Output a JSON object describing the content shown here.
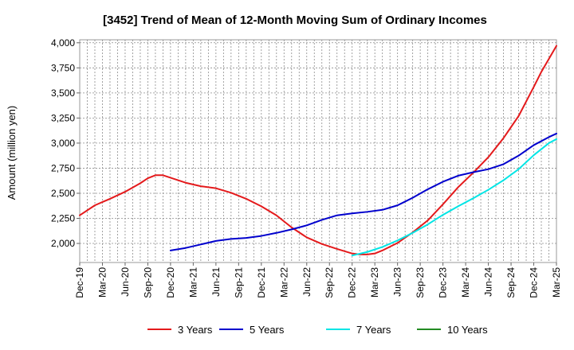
{
  "chart_data": {
    "type": "line",
    "title": "[3452]  Trend of Mean of 12-Month Moving Sum of Ordinary Incomes",
    "xlabel": "",
    "ylabel": "Amount (million yen)",
    "ylim": [
      1810,
      4030
    ],
    "y_ticks": [
      2000,
      2250,
      2500,
      2750,
      3000,
      3250,
      3500,
      3750,
      4000
    ],
    "y_tick_labels": [
      "2,000",
      "2,250",
      "2,500",
      "2,750",
      "3,000",
      "3,250",
      "3,500",
      "3,750",
      "4,000"
    ],
    "x_tick_labels": [
      "Dec-19",
      "Mar-20",
      "Jun-20",
      "Sep-20",
      "Dec-20",
      "Mar-21",
      "Jun-21",
      "Sep-21",
      "Dec-21",
      "Mar-22",
      "Jun-22",
      "Sep-22",
      "Dec-22",
      "Mar-23",
      "Jun-23",
      "Sep-23",
      "Dec-23",
      "Mar-24",
      "Jun-24",
      "Sep-24",
      "Dec-24",
      "Mar-25"
    ],
    "x_unit": "months since Dec-19",
    "x_max": 63,
    "grid": true,
    "legend_position": "bottom",
    "series": [
      {
        "name": "3 Years",
        "color": "#e41a1c",
        "x": [
          0,
          2,
          4,
          6,
          8,
          9,
          10,
          11,
          12,
          14,
          16,
          18,
          20,
          22,
          24,
          26,
          28,
          30,
          32,
          34,
          36,
          37,
          38,
          39,
          40,
          42,
          44,
          46,
          48,
          50,
          52,
          54,
          56,
          58,
          60,
          61,
          62,
          63
        ],
        "values": [
          2280,
          2380,
          2445,
          2515,
          2600,
          2650,
          2680,
          2680,
          2655,
          2605,
          2570,
          2550,
          2505,
          2445,
          2370,
          2280,
          2160,
          2060,
          1995,
          1945,
          1900,
          1890,
          1890,
          1900,
          1930,
          2005,
          2110,
          2230,
          2390,
          2560,
          2705,
          2860,
          3050,
          3270,
          3560,
          3710,
          3840,
          3970
        ]
      },
      {
        "name": "5 Years",
        "color": "#0000cd",
        "x": [
          12,
          14,
          16,
          18,
          20,
          22,
          24,
          26,
          28,
          30,
          32,
          34,
          36,
          38,
          40,
          42,
          44,
          46,
          48,
          50,
          52,
          54,
          56,
          58,
          60,
          62,
          63
        ],
        "values": [
          1930,
          1955,
          1990,
          2025,
          2045,
          2055,
          2075,
          2105,
          2140,
          2180,
          2235,
          2280,
          2300,
          2315,
          2335,
          2380,
          2455,
          2540,
          2615,
          2675,
          2710,
          2740,
          2790,
          2875,
          2980,
          3060,
          3095
        ]
      },
      {
        "name": "7 Years",
        "color": "#00e5e5",
        "x": [
          36,
          38,
          40,
          42,
          44,
          46,
          48,
          50,
          52,
          54,
          56,
          58,
          60,
          62,
          63
        ],
        "values": [
          1880,
          1915,
          1965,
          2030,
          2105,
          2190,
          2285,
          2370,
          2450,
          2535,
          2630,
          2740,
          2880,
          3000,
          3040
        ]
      },
      {
        "name": "10 Years",
        "color": "#228b22",
        "x": [],
        "values": []
      }
    ]
  }
}
